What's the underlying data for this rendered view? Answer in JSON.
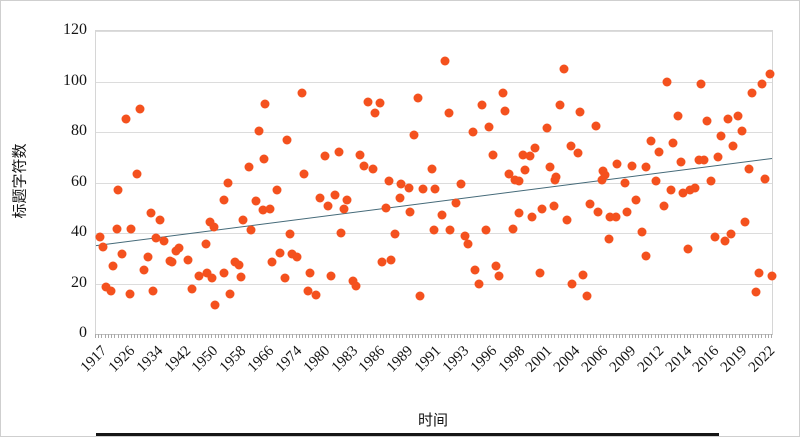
{
  "chart_data": {
    "type": "scatter",
    "title": "",
    "xlabel": "时间",
    "ylabel": "标题字符数",
    "ylim": [
      0,
      120
    ],
    "y_ticks": [
      0,
      20,
      40,
      60,
      80,
      100,
      120
    ],
    "x_tick_labels": [
      "1917",
      "1926",
      "1934",
      "1942",
      "1950",
      "1958",
      "1966",
      "1974",
      "1980",
      "1983",
      "1986",
      "1989",
      "1991",
      "1993",
      "1996",
      "1998",
      "2001",
      "2004",
      "2006",
      "2009",
      "2012",
      "2014",
      "2016",
      "2019",
      "2022"
    ],
    "x_minor_tick_count": 210,
    "grid": "horizontal-only",
    "legend_position": "none",
    "point_color": "#f4511e",
    "trend_line": {
      "color": "#456a79",
      "x_start_pct": 0,
      "y_start": 35,
      "x_end_pct": 100,
      "y_end": 69.5
    },
    "points_format": "[x_percent_across_plot, y_value_characters]",
    "points": [
      [
        0.6,
        38.5
      ],
      [
        1.1,
        34.5
      ],
      [
        1.5,
        18.5
      ],
      [
        2.2,
        17
      ],
      [
        2.5,
        27
      ],
      [
        3.1,
        41.5
      ],
      [
        3.3,
        57
      ],
      [
        3.8,
        31.5
      ],
      [
        4.5,
        85
      ],
      [
        5.0,
        16
      ],
      [
        5.2,
        41.5
      ],
      [
        6.0,
        63.5
      ],
      [
        6.5,
        89
      ],
      [
        7.1,
        25.5
      ],
      [
        7.7,
        30.5
      ],
      [
        8.1,
        48
      ],
      [
        8.5,
        17
      ],
      [
        8.9,
        38
      ],
      [
        9.5,
        45
      ],
      [
        10.0,
        37
      ],
      [
        10.9,
        29
      ],
      [
        11.2,
        28.5
      ],
      [
        11.9,
        33
      ],
      [
        12.3,
        34
      ],
      [
        13.6,
        29.5
      ],
      [
        14.2,
        18
      ],
      [
        15.2,
        23
      ],
      [
        16.2,
        35.5
      ],
      [
        16.4,
        24
      ],
      [
        16.8,
        44.5
      ],
      [
        17.2,
        22
      ],
      [
        17.4,
        42.5
      ],
      [
        17.6,
        11.5
      ],
      [
        18.9,
        24
      ],
      [
        19.0,
        53
      ],
      [
        19.5,
        60
      ],
      [
        19.8,
        16
      ],
      [
        20.6,
        28.5
      ],
      [
        21.1,
        27.5
      ],
      [
        21.5,
        22.5
      ],
      [
        21.8,
        45
      ],
      [
        22.7,
        66
      ],
      [
        23.0,
        41
      ],
      [
        23.6,
        52.5
      ],
      [
        24.1,
        80.5
      ],
      [
        24.7,
        49
      ],
      [
        24.9,
        69.5
      ],
      [
        25.0,
        91
      ],
      [
        25.7,
        49.5
      ],
      [
        26.0,
        28.5
      ],
      [
        26.8,
        57
      ],
      [
        27.2,
        32
      ],
      [
        27.9,
        22
      ],
      [
        28.2,
        77
      ],
      [
        28.7,
        39.5
      ],
      [
        29.0,
        31.5
      ],
      [
        29.8,
        30.5
      ],
      [
        30.5,
        95.5
      ],
      [
        30.7,
        63.5
      ],
      [
        31.3,
        17
      ],
      [
        31.7,
        24
      ],
      [
        32.6,
        15.5
      ],
      [
        33.2,
        54
      ],
      [
        33.9,
        70.5
      ],
      [
        34.3,
        50.5
      ],
      [
        34.8,
        23
      ],
      [
        35.4,
        55
      ],
      [
        35.9,
        72
      ],
      [
        36.3,
        40
      ],
      [
        36.7,
        49.5
      ],
      [
        37.1,
        53
      ],
      [
        38.0,
        21
      ],
      [
        38.4,
        19
      ],
      [
        39.0,
        71
      ],
      [
        39.7,
        66.5
      ],
      [
        40.3,
        92
      ],
      [
        41.0,
        65.5
      ],
      [
        41.3,
        87.5
      ],
      [
        42.0,
        91.5
      ],
      [
        42.3,
        28.5
      ],
      [
        42.9,
        50
      ],
      [
        43.3,
        60.5
      ],
      [
        43.6,
        29.5
      ],
      [
        44.3,
        39.5
      ],
      [
        45.0,
        54
      ],
      [
        45.1,
        59.5
      ],
      [
        46.3,
        58
      ],
      [
        46.5,
        48.5
      ],
      [
        47.0,
        79
      ],
      [
        47.6,
        93.5
      ],
      [
        48.0,
        15
      ],
      [
        48.3,
        57.5
      ],
      [
        49.7,
        65.5
      ],
      [
        50.0,
        41
      ],
      [
        50.2,
        57.5
      ],
      [
        51.2,
        47
      ],
      [
        51.6,
        108
      ],
      [
        52.2,
        87.5
      ],
      [
        52.4,
        41
      ],
      [
        53.2,
        52
      ],
      [
        54.0,
        59.5
      ],
      [
        54.6,
        39
      ],
      [
        55.0,
        35.5
      ],
      [
        55.7,
        80
      ],
      [
        56.1,
        25.5
      ],
      [
        56.6,
        20
      ],
      [
        57.1,
        90.5
      ],
      [
        57.7,
        41
      ],
      [
        58.1,
        82
      ],
      [
        58.7,
        71
      ],
      [
        59.2,
        27
      ],
      [
        59.6,
        23
      ],
      [
        60.2,
        95.5
      ],
      [
        60.5,
        88.5
      ],
      [
        61.1,
        63.5
      ],
      [
        61.7,
        41.5
      ],
      [
        62.0,
        61
      ],
      [
        62.6,
        60.5
      ],
      [
        62.6,
        48
      ],
      [
        63.1,
        71
      ],
      [
        63.5,
        65
      ],
      [
        64.2,
        70.5
      ],
      [
        64.5,
        46.5
      ],
      [
        65.0,
        73.5
      ],
      [
        65.7,
        24
      ],
      [
        66.0,
        49.5
      ],
      [
        66.7,
        81.5
      ],
      [
        67.2,
        66
      ],
      [
        67.7,
        50.5
      ],
      [
        67.9,
        61
      ],
      [
        68.0,
        62
      ],
      [
        68.7,
        90.5
      ],
      [
        69.2,
        105
      ],
      [
        69.7,
        45
      ],
      [
        70.2,
        74.5
      ],
      [
        70.4,
        20
      ],
      [
        71.3,
        71.5
      ],
      [
        71.6,
        88
      ],
      [
        72.1,
        23.5
      ],
      [
        72.6,
        15
      ],
      [
        73.1,
        51.5
      ],
      [
        73.9,
        82.5
      ],
      [
        74.2,
        48.5
      ],
      [
        74.9,
        61
      ],
      [
        75.0,
        64.5
      ],
      [
        75.3,
        63
      ],
      [
        75.9,
        37.5
      ],
      [
        76.1,
        46.5
      ],
      [
        76.9,
        46.5
      ],
      [
        77.1,
        67.5
      ],
      [
        78.3,
        60
      ],
      [
        78.6,
        48.5
      ],
      [
        79.3,
        66.5
      ],
      [
        79.9,
        53
      ],
      [
        80.8,
        40.5
      ],
      [
        81.3,
        66
      ],
      [
        81.4,
        31
      ],
      [
        82.1,
        76.5
      ],
      [
        82.9,
        60.5
      ],
      [
        83.3,
        72
      ],
      [
        84.0,
        50.5
      ],
      [
        84.5,
        100
      ],
      [
        85.0,
        57
      ],
      [
        85.4,
        75.5
      ],
      [
        86.1,
        86.5
      ],
      [
        86.6,
        68
      ],
      [
        86.8,
        56
      ],
      [
        87.6,
        33.5
      ],
      [
        87.8,
        57
      ],
      [
        88.6,
        58
      ],
      [
        89.2,
        69
      ],
      [
        89.5,
        99
      ],
      [
        90.0,
        69
      ],
      [
        90.4,
        84.5
      ],
      [
        91.0,
        60.5
      ],
      [
        91.6,
        38.5
      ],
      [
        92.0,
        70
      ],
      [
        92.5,
        78.5
      ],
      [
        93.0,
        37
      ],
      [
        93.5,
        85
      ],
      [
        94.0,
        39.5
      ],
      [
        94.2,
        74.5
      ],
      [
        95.0,
        86.5
      ],
      [
        95.5,
        80.5
      ],
      [
        96.0,
        44.5
      ],
      [
        96.6,
        65.5
      ],
      [
        97.0,
        95.5
      ],
      [
        97.6,
        16.5
      ],
      [
        98.1,
        24
      ],
      [
        98.5,
        99
      ],
      [
        99.0,
        61.5
      ],
      [
        99.7,
        103
      ],
      [
        100.0,
        23
      ]
    ]
  },
  "decorations": {
    "gridline_color": "#dcdcdc",
    "tick_color": "#a9a9a9",
    "text_color": "#141414",
    "background_color": "#ffffff",
    "bottom_edge_color": "#161616"
  }
}
